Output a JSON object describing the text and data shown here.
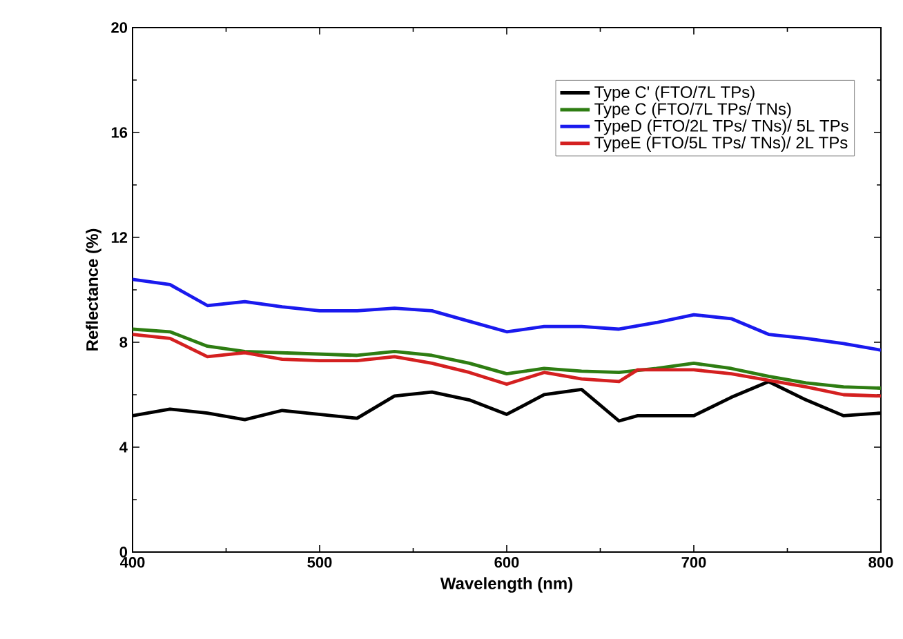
{
  "chart_data": {
    "type": "line",
    "xlabel": "Wavelength (nm)",
    "ylabel": "Reflectance (%)",
    "xlim": [
      400,
      800
    ],
    "ylim": [
      0,
      20
    ],
    "xticks": [
      400,
      500,
      600,
      700,
      800
    ],
    "yticks": [
      0,
      4,
      8,
      12,
      16,
      20
    ],
    "legend": "top right",
    "grid": false,
    "marker": "none",
    "line_style": "solid",
    "series": [
      {
        "name": "Type C' (FTO/7L TPs)",
        "color": "#000000",
        "x": [
          400,
          420,
          440,
          460,
          480,
          500,
          520,
          540,
          560,
          580,
          600,
          620,
          640,
          660,
          670,
          700,
          720,
          740,
          760,
          780,
          800
        ],
        "values": [
          5.2,
          5.45,
          5.3,
          5.05,
          5.4,
          5.25,
          5.1,
          5.95,
          6.1,
          5.8,
          5.25,
          6.0,
          6.2,
          5.0,
          5.2,
          5.2,
          5.9,
          6.5,
          5.8,
          5.2,
          5.3
        ]
      },
      {
        "name": "Type C (FTO/7L TPs/ TNs)",
        "color": "#2e7d12",
        "x": [
          400,
          420,
          440,
          460,
          480,
          500,
          520,
          540,
          560,
          580,
          600,
          620,
          640,
          660,
          680,
          700,
          720,
          740,
          760,
          780,
          800
        ],
        "values": [
          8.5,
          8.4,
          7.85,
          7.65,
          7.6,
          7.55,
          7.5,
          7.65,
          7.5,
          7.2,
          6.8,
          7.0,
          6.9,
          6.85,
          7.0,
          7.2,
          7.0,
          6.7,
          6.45,
          6.3,
          6.25
        ]
      },
      {
        "name": "TypeD (FTO/2L TPs/ TNs)/ 5L TPs",
        "color": "#1a1aee",
        "x": [
          400,
          420,
          440,
          460,
          480,
          500,
          520,
          540,
          560,
          580,
          600,
          620,
          640,
          660,
          680,
          700,
          720,
          740,
          760,
          780,
          800
        ],
        "values": [
          10.4,
          10.2,
          9.4,
          9.55,
          9.35,
          9.2,
          9.2,
          9.3,
          9.2,
          8.8,
          8.4,
          8.6,
          8.6,
          8.5,
          8.75,
          9.05,
          8.9,
          8.3,
          8.15,
          7.95,
          7.7
        ]
      },
      {
        "name": "TypeE (FTO/5L TPs/ TNs)/ 2L TPs",
        "color": "#d42020",
        "x": [
          400,
          420,
          440,
          460,
          480,
          500,
          520,
          540,
          560,
          580,
          600,
          620,
          640,
          660,
          670,
          700,
          720,
          740,
          760,
          780,
          800
        ],
        "values": [
          8.3,
          8.15,
          7.45,
          7.6,
          7.35,
          7.3,
          7.3,
          7.45,
          7.2,
          6.85,
          6.4,
          6.85,
          6.6,
          6.5,
          6.95,
          6.95,
          6.8,
          6.55,
          6.3,
          6.0,
          5.95
        ]
      }
    ]
  }
}
